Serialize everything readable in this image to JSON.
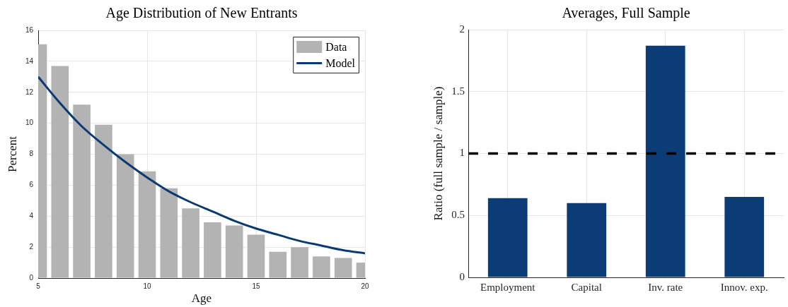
{
  "chart_data": [
    {
      "type": "bar",
      "title": "Age Distribution of New Entrants",
      "xlabel": "Age",
      "ylabel": "Percent",
      "x": [
        5,
        6,
        7,
        8,
        9,
        10,
        11,
        12,
        13,
        14,
        15,
        16,
        17,
        18,
        19,
        20
      ],
      "series": [
        {
          "name": "Data",
          "color": "#b3b3b3",
          "values": [
            15.1,
            13.7,
            11.2,
            9.9,
            8.0,
            6.9,
            5.8,
            4.5,
            3.6,
            3.4,
            2.8,
            1.7,
            2.0,
            1.4,
            1.3,
            1.0
          ]
        },
        {
          "name": "Model",
          "type": "line",
          "color": "#0b3a73",
          "values": [
            13.0,
            11.3,
            9.8,
            8.6,
            7.5,
            6.5,
            5.6,
            4.9,
            4.3,
            3.7,
            3.2,
            2.8,
            2.4,
            2.1,
            1.8,
            1.6
          ]
        }
      ],
      "xlim": [
        5,
        20
      ],
      "xticks": [
        5,
        10,
        15,
        20
      ],
      "ylim": [
        0,
        16
      ],
      "yticks": [
        0,
        2,
        4,
        6,
        8,
        10,
        12,
        14,
        16
      ],
      "grid": true,
      "legend": "top right"
    },
    {
      "type": "bar",
      "title": "Averages, Full Sample",
      "ylabel": "Ratio (full sample / sample)",
      "categories": [
        "Employment",
        "Capital",
        "Inv. rate",
        "Innov. exp."
      ],
      "values": [
        0.64,
        0.6,
        1.87,
        0.65
      ],
      "color": "#0b3c75",
      "ylim": [
        0,
        2
      ],
      "yticks": [
        0,
        0.5,
        1,
        1.5,
        2
      ],
      "grid": true,
      "ref_lines": [
        {
          "axis": "y",
          "value": 1,
          "color": "#000000",
          "line_style": "dashed"
        }
      ]
    }
  ]
}
